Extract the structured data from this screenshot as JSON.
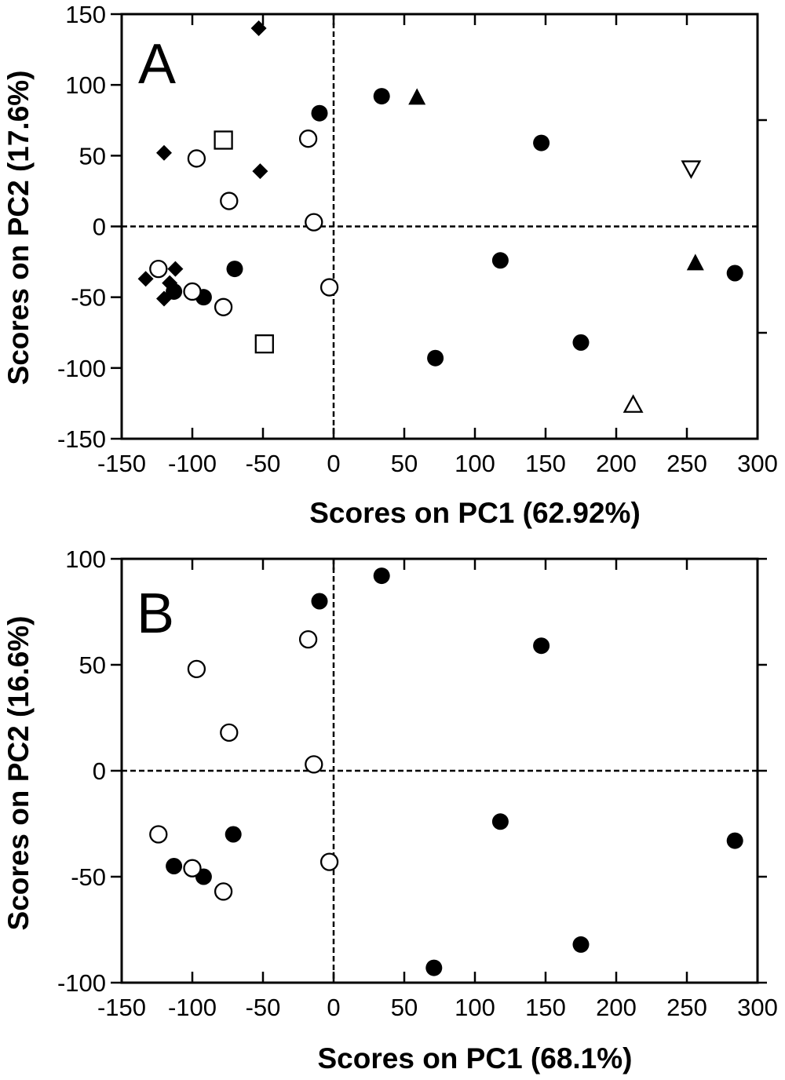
{
  "chart_data": [
    {
      "type": "scatter",
      "panel_label": "A",
      "xlabel": "Scores on PC1 (62.92%)",
      "ylabel": "Scores on PC2 (17.6%)",
      "xlim": [
        -150,
        300
      ],
      "ylim": [
        -150,
        150
      ],
      "xticks": [
        -150,
        -100,
        -50,
        0,
        50,
        100,
        150,
        200,
        250,
        300
      ],
      "yticks": [
        -150,
        -100,
        -50,
        0,
        50,
        100,
        150
      ],
      "zero_lines": true,
      "grid": false,
      "series": [
        {
          "marker": "filled-circle",
          "points": [
            [
              -10,
              80
            ],
            [
              34,
              92
            ],
            [
              147,
              59
            ],
            [
              -70,
              -30
            ],
            [
              -92,
              -50
            ],
            [
              -113,
              -46
            ],
            [
              118,
              -24
            ],
            [
              175,
              -82
            ],
            [
              72,
              -93
            ],
            [
              284,
              -33
            ]
          ]
        },
        {
          "marker": "open-circle",
          "points": [
            [
              -97,
              48
            ],
            [
              -18,
              62
            ],
            [
              -74,
              18
            ],
            [
              -14,
              3
            ],
            [
              -124,
              -30
            ],
            [
              -100,
              -46
            ],
            [
              -78,
              -57
            ],
            [
              -3,
              -43
            ]
          ]
        },
        {
          "marker": "filled-diamond",
          "points": [
            [
              -53,
              140
            ],
            [
              -120,
              52
            ],
            [
              -52,
              39
            ],
            [
              -133,
              -37
            ],
            [
              -112,
              -30
            ],
            [
              -116,
              -40
            ],
            [
              -120,
              -51
            ]
          ]
        },
        {
          "marker": "open-square",
          "points": [
            [
              -78,
              61
            ],
            [
              -49,
              -83
            ]
          ]
        },
        {
          "marker": "filled-triangle-up",
          "points": [
            [
              59,
              91
            ],
            [
              256,
              -26
            ]
          ]
        },
        {
          "marker": "open-triangle-down",
          "points": [
            [
              253,
              41
            ]
          ]
        },
        {
          "marker": "open-triangle-up",
          "points": [
            [
              212,
              -126
            ]
          ]
        }
      ]
    },
    {
      "type": "scatter",
      "panel_label": "B",
      "xlabel": "Scores on PC1 (68.1%)",
      "ylabel": "Scores on PC2 (16.6%)",
      "xlim": [
        -150,
        300
      ],
      "ylim": [
        -100,
        100
      ],
      "xticks": [
        -150,
        -100,
        -50,
        0,
        50,
        100,
        150,
        200,
        250,
        300
      ],
      "yticks": [
        -100,
        -50,
        0,
        50,
        100
      ],
      "zero_lines": true,
      "grid": false,
      "series": [
        {
          "marker": "filled-circle",
          "points": [
            [
              -10,
              80
            ],
            [
              34,
              92
            ],
            [
              147,
              59
            ],
            [
              -71,
              -30
            ],
            [
              -92,
              -50
            ],
            [
              -113,
              -45
            ],
            [
              118,
              -24
            ],
            [
              175,
              -82
            ],
            [
              71,
              -93
            ],
            [
              284,
              -33
            ]
          ]
        },
        {
          "marker": "open-circle",
          "points": [
            [
              -97,
              48
            ],
            [
              -18,
              62
            ],
            [
              -74,
              18
            ],
            [
              -14,
              3
            ],
            [
              -124,
              -30
            ],
            [
              -100,
              -46
            ],
            [
              -78,
              -57
            ],
            [
              -3,
              -43
            ]
          ]
        }
      ]
    }
  ]
}
